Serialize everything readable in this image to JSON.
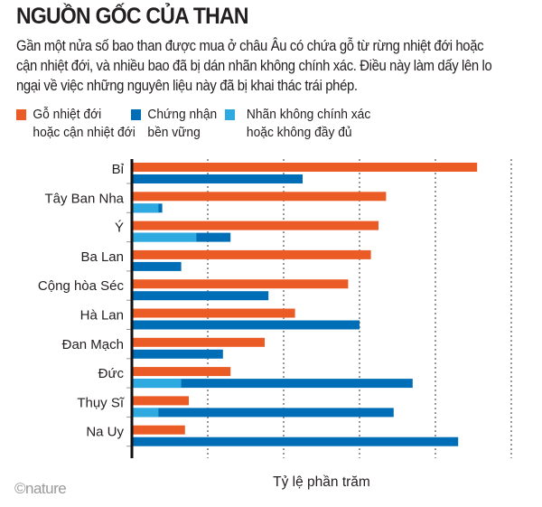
{
  "title": "NGUỒN GỐC CỦA THAN",
  "subtitle": "Gần một nửa số bao than được mua ở châu Âu có chứa gỗ từ rừng nhiệt đới hoặc cận nhiệt đới, và nhiều bao đã bị dán nhãn không chính xác. Điều này làm dấy lên lo ngại về việc những nguyên liệu này đã bị khai thác trái phép.",
  "logo": "©nature",
  "colors": {
    "tropical": "#eb5b25",
    "certified": "#006eb6",
    "mislabeled": "#2eaae1"
  },
  "chart_data": {
    "type": "bar",
    "orientation": "horizontal",
    "title": "NGUỒN GỐC CỦA THAN",
    "xlabel": "Tỷ lệ phần trăm",
    "ylabel": "",
    "xlim": [
      0,
      100
    ],
    "grid": true,
    "legend_position": "top",
    "categories": [
      "Bỉ",
      "Tây Ban Nha",
      "Ý",
      "Ba Lan",
      "Cộng hòa Séc",
      "Hà Lan",
      "Đan Mạch",
      "Đức",
      "Thụy Sĩ",
      "Na Uy"
    ],
    "series": [
      {
        "name": "Gỗ nhiệt đới\nhoặc cận nhiệt đới",
        "values": [
          91,
          67,
          65,
          63,
          57,
          43,
          35,
          26,
          15,
          14
        ]
      },
      {
        "name": "Chứng nhận\nbền vững",
        "values": [
          45,
          8,
          26,
          13,
          36,
          60,
          24,
          74,
          69,
          86
        ]
      },
      {
        "name": "Nhãn không chính xác\nhoặc không đầy đủ",
        "values": [
          0,
          7,
          17,
          0,
          0,
          0,
          0,
          13,
          7,
          0
        ]
      }
    ]
  }
}
